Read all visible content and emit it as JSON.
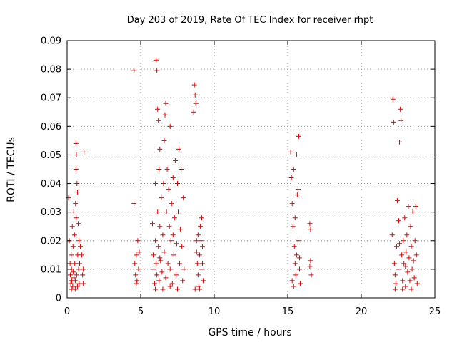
{
  "chart_data": {
    "type": "scatter",
    "title": "Day 203 of 2019, Rate Of TEC Index for receiver rhpt",
    "xlabel": "GPS time / hours",
    "ylabel": "ROTI / TECUs",
    "xlim": [
      0,
      25
    ],
    "ylim": [
      0,
      0.09
    ],
    "xticks": [
      0,
      5,
      10,
      15,
      20,
      25
    ],
    "xtick_labels": [
      "0",
      "5",
      "10",
      "15",
      "20",
      "25"
    ],
    "yticks": [
      0,
      0.01,
      0.02,
      0.03,
      0.04,
      0.05,
      0.06,
      0.07,
      0.08,
      0.09
    ],
    "ytick_labels": [
      "0",
      "0.01",
      "0.02",
      "0.03",
      "0.04",
      "0.05",
      "0.06",
      "0.07",
      "0.08",
      "0.09"
    ],
    "grid": true,
    "marker": "+",
    "marker_color": "#e00000",
    "series": [
      {
        "name": "ROTI",
        "points": [
          [
            0.1,
            0.035
          ],
          [
            0.15,
            0.02
          ],
          [
            0.2,
            0.012
          ],
          [
            0.22,
            0.008
          ],
          [
            0.25,
            0.005
          ],
          [
            0.28,
            0.015
          ],
          [
            0.3,
            0.01
          ],
          [
            0.32,
            0.006
          ],
          [
            0.35,
            0.025
          ],
          [
            0.38,
            0.004
          ],
          [
            0.4,
            0.018
          ],
          [
            0.42,
            0.009
          ],
          [
            0.45,
            0.03
          ],
          [
            0.47,
            0.007
          ],
          [
            0.5,
            0.022
          ],
          [
            0.52,
            0.012
          ],
          [
            0.55,
            0.006
          ],
          [
            0.57,
            0.033
          ],
          [
            0.6,
            0.045
          ],
          [
            0.6,
            0.054
          ],
          [
            0.62,
            0.028
          ],
          [
            0.63,
            0.05
          ],
          [
            0.65,
            0.008
          ],
          [
            0.67,
            0.04
          ],
          [
            0.7,
            0.037
          ],
          [
            0.72,
            0.015
          ],
          [
            0.75,
            0.026
          ],
          [
            0.78,
            0.01
          ],
          [
            0.8,
            0.02
          ],
          [
            0.82,
            0.005
          ],
          [
            0.85,
            0.012
          ],
          [
            0.9,
            0.018
          ],
          [
            1.0,
            0.015
          ],
          [
            1.05,
            0.008
          ],
          [
            1.1,
            0.005
          ],
          [
            1.15,
            0.051
          ],
          [
            1.1,
            0.01
          ],
          [
            0.3,
            0.003
          ],
          [
            0.55,
            0.003
          ],
          [
            0.7,
            0.004
          ],
          [
            4.55,
            0.033
          ],
          [
            4.55,
            0.0795
          ],
          [
            4.6,
            0.012
          ],
          [
            4.65,
            0.008
          ],
          [
            4.7,
            0.015
          ],
          [
            4.75,
            0.006
          ],
          [
            4.8,
            0.02
          ],
          [
            4.85,
            0.01
          ],
          [
            4.9,
            0.016
          ],
          [
            4.7,
            0.005
          ],
          [
            5.8,
            0.026
          ],
          [
            5.85,
            0.015
          ],
          [
            5.9,
            0.01
          ],
          [
            5.95,
            0.005
          ],
          [
            6.0,
            0.02
          ],
          [
            6.0,
            0.04
          ],
          [
            6.05,
            0.012
          ],
          [
            6.05,
            0.0832
          ],
          [
            6.1,
            0.0795
          ],
          [
            6.1,
            0.008
          ],
          [
            6.15,
            0.03
          ],
          [
            6.15,
            0.066
          ],
          [
            6.2,
            0.062
          ],
          [
            6.2,
            0.018
          ],
          [
            6.25,
            0.045
          ],
          [
            6.25,
            0.006
          ],
          [
            6.3,
            0.025
          ],
          [
            6.3,
            0.052
          ],
          [
            6.35,
            0.013
          ],
          [
            6.4,
            0.035
          ],
          [
            6.45,
            0.009
          ],
          [
            6.5,
            0.022
          ],
          [
            6.55,
            0.04
          ],
          [
            6.6,
            0.055
          ],
          [
            6.6,
            0.016
          ],
          [
            6.65,
            0.064
          ],
          [
            6.7,
            0.068
          ],
          [
            6.7,
            0.007
          ],
          [
            6.75,
            0.03
          ],
          [
            6.8,
            0.045
          ],
          [
            6.85,
            0.012
          ],
          [
            6.9,
            0.038
          ],
          [
            6.95,
            0.025
          ],
          [
            7.0,
            0.06
          ],
          [
            7.0,
            0.01
          ],
          [
            7.05,
            0.02
          ],
          [
            7.1,
            0.033
          ],
          [
            7.15,
            0.005
          ],
          [
            7.2,
            0.042
          ],
          [
            7.25,
            0.015
          ],
          [
            7.3,
            0.028
          ],
          [
            7.35,
            0.048
          ],
          [
            7.4,
            0.008
          ],
          [
            7.45,
            0.019
          ],
          [
            7.5,
            0.04
          ],
          [
            7.55,
            0.03
          ],
          [
            7.6,
            0.052
          ],
          [
            7.65,
            0.012
          ],
          [
            7.7,
            0.024
          ],
          [
            7.75,
            0.045
          ],
          [
            7.8,
            0.018
          ],
          [
            7.85,
            0.006
          ],
          [
            7.9,
            0.035
          ],
          [
            7.95,
            0.01
          ],
          [
            6.0,
            0.003
          ],
          [
            6.5,
            0.003
          ],
          [
            7.0,
            0.004
          ],
          [
            7.5,
            0.003
          ],
          [
            6.3,
            0.014
          ],
          [
            7.2,
            0.022
          ],
          [
            8.6,
            0.065
          ],
          [
            8.65,
            0.0745
          ],
          [
            8.7,
            0.071
          ],
          [
            8.75,
            0.068
          ],
          [
            8.8,
            0.02
          ],
          [
            8.85,
            0.012
          ],
          [
            8.9,
            0.008
          ],
          [
            8.95,
            0.004
          ],
          [
            9.0,
            0.015
          ],
          [
            9.05,
            0.025
          ],
          [
            9.1,
            0.01
          ],
          [
            9.15,
            0.028
          ],
          [
            9.2,
            0.018
          ],
          [
            9.25,
            0.006
          ],
          [
            8.7,
            0.003
          ],
          [
            9.0,
            0.003
          ],
          [
            8.8,
            0.016
          ],
          [
            9.1,
            0.02
          ],
          [
            9.2,
            0.012
          ],
          [
            8.9,
            0.022
          ],
          [
            15.2,
            0.051
          ],
          [
            15.25,
            0.042
          ],
          [
            15.3,
            0.033
          ],
          [
            15.35,
            0.025
          ],
          [
            15.4,
            0.045
          ],
          [
            15.45,
            0.018
          ],
          [
            15.5,
            0.012
          ],
          [
            15.55,
            0.008
          ],
          [
            15.6,
            0.05
          ],
          [
            15.65,
            0.036
          ],
          [
            15.7,
            0.02
          ],
          [
            15.75,
            0.0565
          ],
          [
            15.8,
            0.01
          ],
          [
            15.85,
            0.005
          ],
          [
            15.3,
            0.006
          ],
          [
            15.5,
            0.028
          ],
          [
            15.6,
            0.015
          ],
          [
            15.7,
            0.038
          ],
          [
            15.4,
            0.004
          ],
          [
            15.8,
            0.014
          ],
          [
            16.5,
            0.026
          ],
          [
            16.55,
            0.013
          ],
          [
            16.6,
            0.008
          ],
          [
            16.55,
            0.024
          ],
          [
            16.5,
            0.011
          ],
          [
            22.1,
            0.022
          ],
          [
            22.15,
            0.0695
          ],
          [
            22.2,
            0.0615
          ],
          [
            22.25,
            0.012
          ],
          [
            22.3,
            0.008
          ],
          [
            22.35,
            0.005
          ],
          [
            22.4,
            0.018
          ],
          [
            22.45,
            0.034
          ],
          [
            22.5,
            0.01
          ],
          [
            22.55,
            0.027
          ],
          [
            22.6,
            0.0545
          ],
          [
            22.65,
            0.066
          ],
          [
            22.7,
            0.062
          ],
          [
            22.75,
            0.015
          ],
          [
            22.8,
            0.006
          ],
          [
            22.85,
            0.02
          ],
          [
            22.9,
            0.012
          ],
          [
            22.95,
            0.028
          ],
          [
            23.0,
            0.004
          ],
          [
            23.05,
            0.016
          ],
          [
            23.1,
            0.022
          ],
          [
            23.15,
            0.009
          ],
          [
            23.2,
            0.032
          ],
          [
            23.25,
            0.014
          ],
          [
            23.3,
            0.006
          ],
          [
            23.35,
            0.025
          ],
          [
            23.4,
            0.018
          ],
          [
            23.45,
            0.01
          ],
          [
            23.5,
            0.03
          ],
          [
            23.55,
            0.013
          ],
          [
            23.6,
            0.007
          ],
          [
            23.65,
            0.02
          ],
          [
            23.7,
            0.032
          ],
          [
            23.75,
            0.015
          ],
          [
            23.8,
            0.005
          ],
          [
            22.3,
            0.003
          ],
          [
            22.8,
            0.003
          ],
          [
            23.4,
            0.003
          ],
          [
            22.6,
            0.019
          ],
          [
            23.0,
            0.011
          ]
        ]
      }
    ]
  }
}
